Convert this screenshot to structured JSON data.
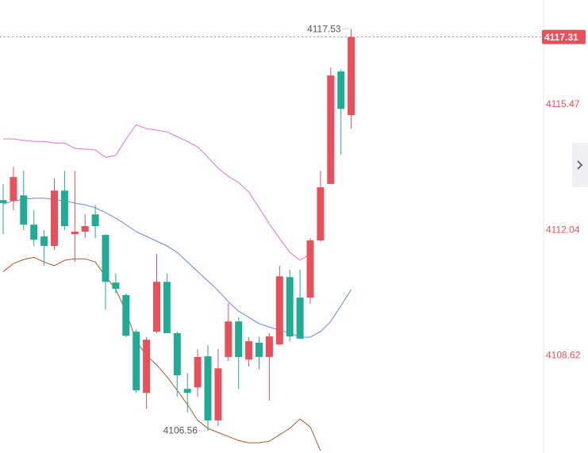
{
  "chart_data": {
    "type": "candlestick",
    "ylim": [
      4105.96,
      4118.32
    ],
    "yticks": [
      4108.62,
      4112.04,
      4115.47
    ],
    "up_color": "#e8505b",
    "down_color": "#22ab94",
    "candles": {
      "open": [
        4112.86,
        4112.84,
        4112.99,
        4112.19,
        4111.87,
        4111.61,
        4113.12,
        4111.93,
        4112.0,
        4112.47,
        4111.91,
        4110.61,
        4110.27,
        4109.27,
        4107.6,
        4109.27,
        4110.63,
        4109.23,
        4107.71,
        4107.75,
        4108.6,
        4106.85,
        4108.58,
        4109.55,
        4108.51,
        4108.97,
        4108.58,
        4108.92,
        4110.76,
        4110.2,
        4110.2,
        4111.76,
        4113.3,
        4116.37,
        4115.18
      ],
      "high": [
        4113.3,
        4113.77,
        4113.66,
        4112.58,
        4112.04,
        4113.45,
        4113.66,
        4113.66,
        4112.47,
        4112.73,
        4111.93,
        4110.85,
        4110.31,
        4109.33,
        4109.12,
        4111.39,
        4110.85,
        4109.27,
        4108.14,
        4108.79,
        4108.9,
        4108.79,
        4110.05,
        4109.66,
        4109.12,
        4109.12,
        4109.23,
        4111.07,
        4110.96,
        4110.96,
        4111.82,
        4113.66,
        4116.48,
        4116.43,
        4117.53
      ],
      "low": [
        4111.93,
        4112.58,
        4112.04,
        4111.61,
        4111.07,
        4111.5,
        4112.04,
        4111.17,
        4111.82,
        4111.82,
        4109.88,
        4110.31,
        4109.12,
        4107.6,
        4107.17,
        4109.23,
        4109.23,
        4107.49,
        4107.06,
        4107.49,
        4106.56,
        4106.69,
        4108.47,
        4107.71,
        4108.32,
        4108.25,
        4107.39,
        4108.92,
        4109.01,
        4109.08,
        4110.03,
        4111.72,
        4113.3,
        4114.1,
        4114.81
      ],
      "close": [
        4112.78,
        4113.49,
        4112.19,
        4111.78,
        4111.61,
        4113.12,
        4112.15,
        4112.0,
        4112.15,
        4112.15,
        4110.63,
        4110.44,
        4109.16,
        4107.67,
        4109.05,
        4110.63,
        4109.23,
        4108.08,
        4107.6,
        4108.58,
        4106.85,
        4108.27,
        4109.55,
        4108.58,
        4109.01,
        4108.58,
        4109.14,
        4110.78,
        4109.14,
        4109.08,
        4111.76,
        4113.21,
        4116.26,
        4115.35,
        4117.31
      ]
    },
    "lines": [
      {
        "color": "#6a86e0",
        "values": [
          4112.75,
          4112.84,
          4112.88,
          4112.91,
          4112.91,
          4112.88,
          4112.84,
          4112.78,
          4112.73,
          4112.65,
          4112.52,
          4112.37,
          4112.19,
          4112.0,
          4111.87,
          4111.74,
          4111.61,
          4111.43,
          4111.17,
          4110.91,
          4110.65,
          4110.39,
          4110.09,
          4109.83,
          4109.66,
          4109.49,
          4109.4,
          4109.31,
          4109.23,
          4109.12,
          4109.12,
          4109.27,
          4109.55,
          4109.98,
          4110.42
        ]
      },
      {
        "color": "#e070e0",
        "values": [
          4114.53,
          4114.53,
          4114.49,
          4114.46,
          4114.46,
          4114.42,
          4114.42,
          4114.27,
          4114.25,
          4114.23,
          4114.03,
          4114.08,
          4114.53,
          4114.92,
          4114.81,
          4114.77,
          4114.72,
          4114.59,
          4114.46,
          4114.31,
          4114.03,
          4113.73,
          4113.51,
          4113.34,
          4113.08,
          4112.65,
          4112.21,
          4111.82,
          4111.43,
          4111.22,
          4111.39,
          null,
          null,
          null,
          null
        ]
      },
      {
        "color": "#a65a2e",
        "values": [
          4110.91,
          4111.13,
          4111.24,
          4111.3,
          4111.17,
          4111.07,
          4111.22,
          4111.26,
          4111.26,
          4111.17,
          4110.78,
          4110.42,
          4109.83,
          4109.01,
          4108.62,
          4108.36,
          4108.04,
          4107.67,
          4107.28,
          4106.85,
          4106.63,
          4106.52,
          4106.41,
          4106.3,
          4106.24,
          4106.24,
          4106.28,
          4106.46,
          4106.63,
          4106.89,
          4106.67,
          4106.02,
          null,
          null,
          null
        ]
      }
    ]
  }
}
